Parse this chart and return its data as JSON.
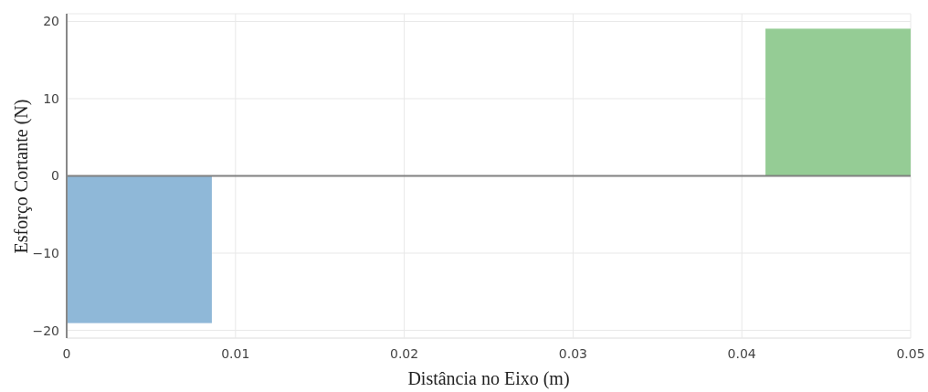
{
  "chart_data": {
    "type": "area",
    "xlabel": "Distância no Eixo (m)",
    "ylabel": "Esforço Cortante (N)",
    "series": [
      {
        "color": "#8fb8d8",
        "x": [
          0,
          0.0086
        ],
        "values": [
          -19,
          -19
        ]
      },
      {
        "color": "#95cc95",
        "x": [
          0.0414,
          0.05
        ],
        "values": [
          19,
          19
        ]
      }
    ],
    "xlim": [
      0,
      0.05
    ],
    "xticks": [
      0,
      0.01,
      0.02,
      0.03,
      0.04,
      0.05
    ],
    "ylim": [
      -21,
      21
    ],
    "yticks": [
      -20,
      -10,
      0,
      10,
      20
    ],
    "ref_lines": [
      {
        "axis": "y",
        "value": 0,
        "color": "#808080"
      }
    ],
    "grid": true
  }
}
